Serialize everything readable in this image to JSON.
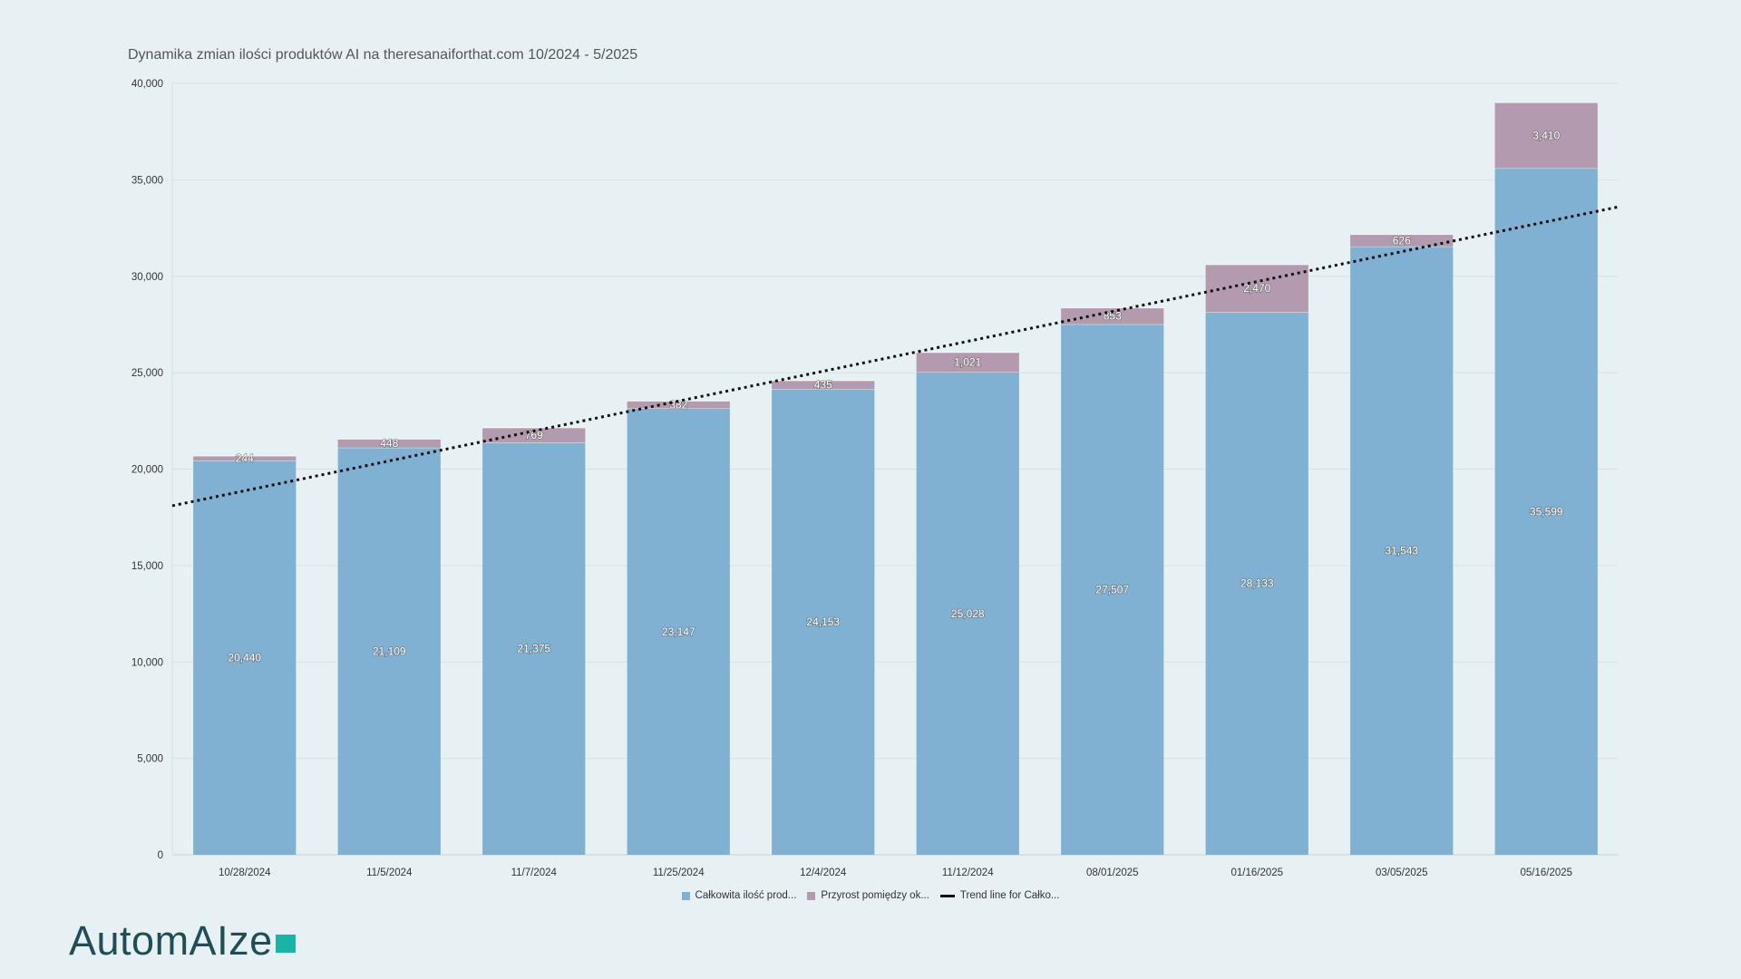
{
  "chart_data": {
    "type": "bar",
    "stacked": true,
    "title": "Dynamika zmian ilości produktów AI na theresanaiforthat.com 10/2024 - 5/2025",
    "categories": [
      "10/28/2024",
      "11/5/2024",
      "11/7/2024",
      "11/25/2024",
      "12/4/2024",
      "11/12/2024",
      "08/01/2025",
      "01/16/2025",
      "03/05/2025",
      "05/16/2025"
    ],
    "series": [
      {
        "name": "Całkowita ilość prod...",
        "color": "#80b1d3",
        "values": [
          20440,
          21109,
          21375,
          23147,
          24153,
          25028,
          27507,
          28133,
          31543,
          35599
        ]
      },
      {
        "name": "Przyrost pomiędzy ok...",
        "color": "#b49aae",
        "values": [
          244,
          448,
          769,
          382,
          435,
          1021,
          853,
          2470,
          626,
          3410
        ]
      }
    ],
    "trendline": {
      "name": "Trend line for Całko...",
      "color": "#111111",
      "style": "dotted",
      "start_value": 18100,
      "end_value": 33600
    },
    "ylim": [
      0,
      40000
    ],
    "yticks": [
      "0",
      "5,000",
      "10,000",
      "15,000",
      "20,000",
      "25,000",
      "30,000",
      "35,000",
      "40,000"
    ],
    "xlabel": "",
    "ylabel": "",
    "grid": true,
    "legend_position": "bottom"
  },
  "brand": {
    "logo_text": "AutomAIze",
    "accent_color": "#1bb3a8"
  }
}
